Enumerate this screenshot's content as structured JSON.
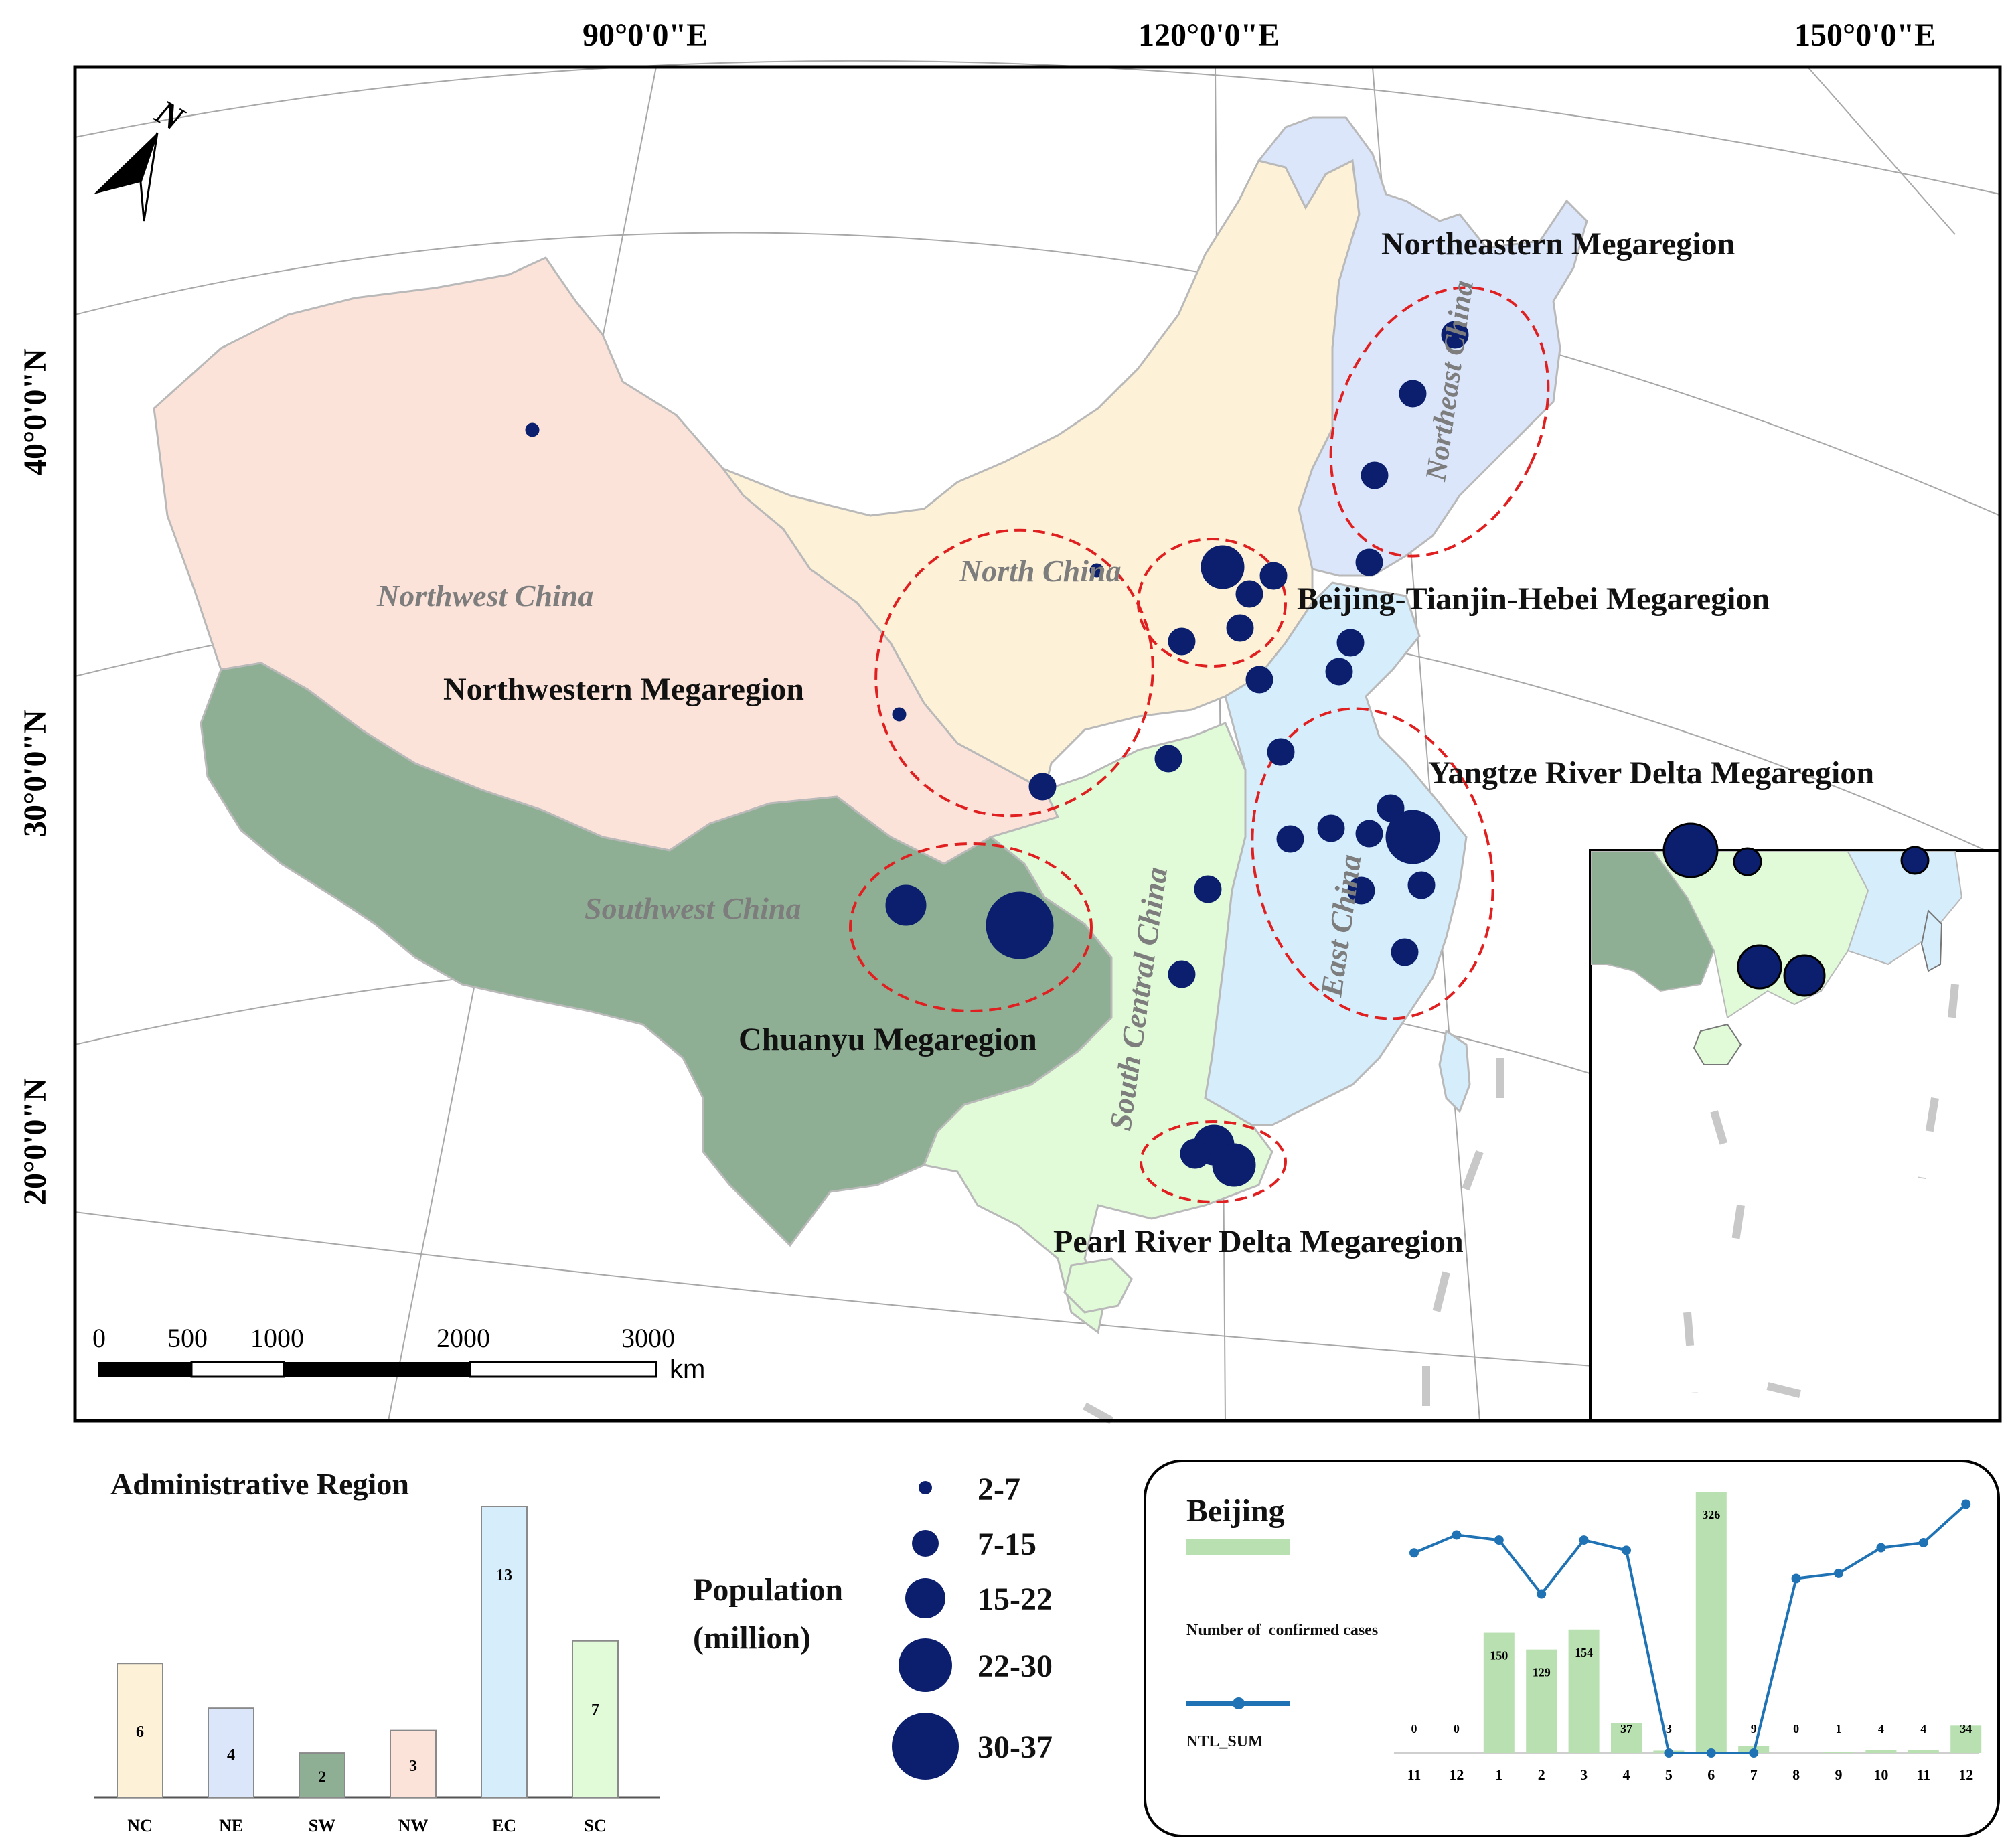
{
  "map": {
    "longitude_ticks": [
      "90°0'0\"E",
      "120°0'0\"E",
      "150°0'0\"E"
    ],
    "latitude_ticks": [
      "40°0'0\"N",
      "30°0'0\"N",
      "20°0'0\"N"
    ],
    "north_arrow_label": "N",
    "scale_bar": {
      "ticks": [
        "0",
        "500",
        "1000",
        "2000",
        "3000"
      ],
      "unit": "km"
    },
    "region_labels": [
      "Northwest China",
      "North China",
      "Southwest China",
      "South Central China",
      "East China",
      "Northeast China"
    ],
    "megaregion_labels": [
      "Northeastern Megaregion",
      "Beijing-Tianjin-Hebei Megaregion",
      "Northwestern Megaregion",
      "Yangtze River Delta Megaregion",
      "Chuanyu Megaregion",
      "Pearl River Delta Megaregion"
    ],
    "colors": {
      "northwest": "#fbe3d9",
      "north": "#fdf2d8",
      "northeast": "#dbe6fb",
      "southwest": "#8faf94",
      "east": "#d6edfb",
      "south_central": "#e1fbd9",
      "city_marker": "#0b1f6e",
      "megaregion_outline": "#e02020"
    }
  },
  "legend_population": {
    "title_line1": "Population",
    "title_line2": "(million)",
    "classes": [
      "2-7",
      "7-15",
      "15-22",
      "22-30",
      "30-37"
    ]
  },
  "chart_data": [
    {
      "type": "bar",
      "title": "Administrative Region",
      "categories": [
        "NC",
        "NE",
        "SW",
        "NW",
        "EC",
        "SC"
      ],
      "values": [
        6,
        4,
        2,
        3,
        13,
        7
      ],
      "colors": [
        "#fdf2d8",
        "#dbe6fb",
        "#8faf94",
        "#fbe3d9",
        "#d6edfb",
        "#e1fbd9"
      ]
    },
    {
      "type": "bar+line",
      "title": "Beijing",
      "categories": [
        "11",
        "12",
        "1",
        "2",
        "3",
        "4",
        "5",
        "6",
        "7",
        "8",
        "9",
        "10",
        "11",
        "12"
      ],
      "series": [
        {
          "name": "Number of  confirmed cases",
          "kind": "bar",
          "color": "#b8e0b0",
          "values": [
            0,
            0,
            150,
            129,
            154,
            37,
            3,
            326,
            9,
            0,
            1,
            4,
            4,
            34
          ]
        },
        {
          "name": "NTL_SUM",
          "kind": "line",
          "color": "#1f73b4",
          "values_relative": [
            0.78,
            0.85,
            0.83,
            0.62,
            0.83,
            0.79,
            0.0,
            0.0,
            0.0,
            0.68,
            0.7,
            0.8,
            0.82,
            0.97
          ]
        }
      ]
    }
  ]
}
